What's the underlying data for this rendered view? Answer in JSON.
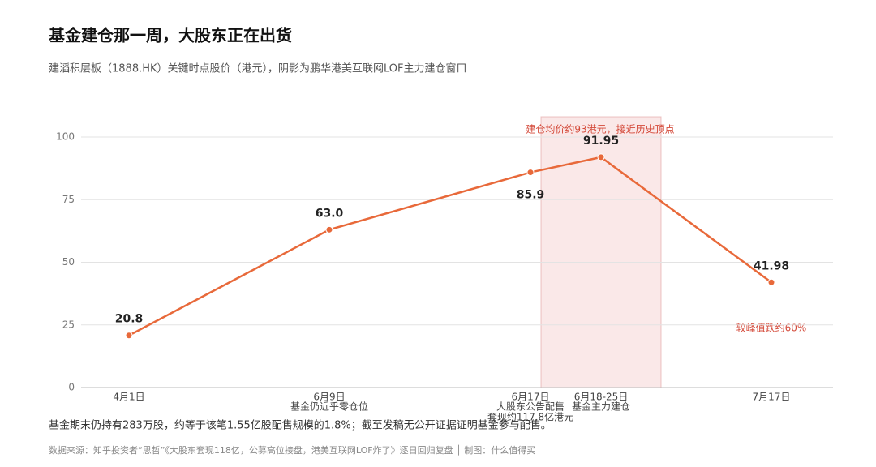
{
  "chart_data": {
    "type": "line",
    "title": "基金建仓那一周，大股东正在出货",
    "subtitle": "建滔积层板（1888.HK）关键时点股价（港元），阴影为鹏华港美互联网LOF主力建仓窗口",
    "categories": [
      "4月1日",
      "6月9日",
      "6月17日",
      "6月18-25日",
      "7月17日"
    ],
    "sublabels": [
      null,
      [
        "基金仍近乎零仓位"
      ],
      [
        "大股东公告配售",
        "套现约117.8亿港元"
      ],
      [
        "基金主力建仓"
      ],
      null
    ],
    "values": [
      20.8,
      63.0,
      85.9,
      91.95,
      41.98
    ],
    "value_labels": [
      "20.8",
      "63.0",
      "85.9",
      "91.95",
      "41.98"
    ],
    "color": "#e8693a",
    "ylim": [
      0,
      100
    ],
    "yticks": [
      0,
      25,
      50,
      75,
      100
    ],
    "grid": true,
    "annotations": [
      "建仓均价约93港元，接近历史顶点",
      "较峰值跌约60%"
    ],
    "footnote": "基金期末仍持有283万股，约等于该笔1.55亿股配售规模的1.8%；截至发稿无公开证据证明基金参与配售。",
    "source": "数据来源：知乎投资者“思哲”《大股东套现118亿，公募高位接盘，港美互联网LOF炸了》逐日回归复盘 │ 制图：什么值得买"
  }
}
